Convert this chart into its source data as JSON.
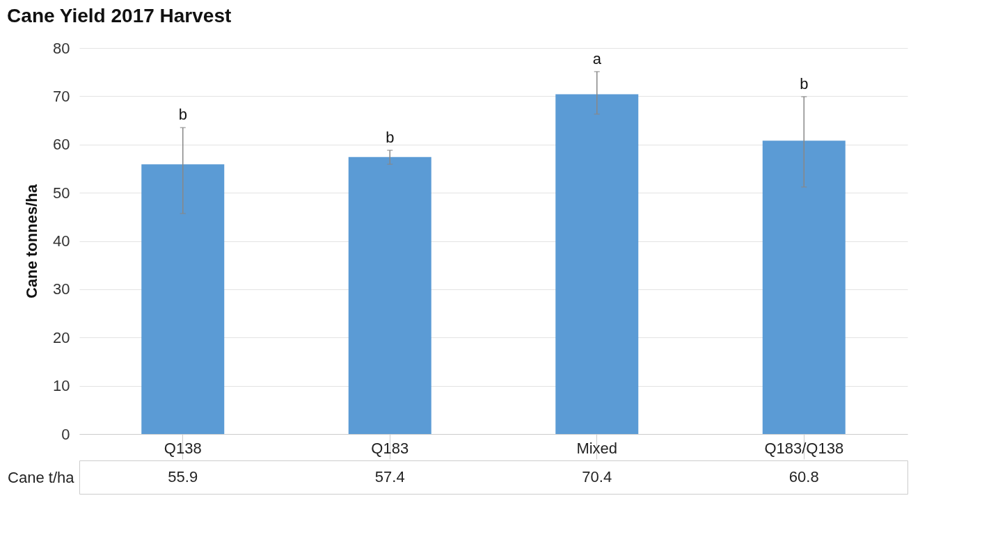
{
  "chart_data": {
    "type": "bar",
    "title": "Cane Yield 2017 Harvest",
    "ylabel": "Cane tonnes/ha",
    "categories": [
      "Q138",
      "Q183",
      "Mixed",
      "Q183/Q138"
    ],
    "series": [
      {
        "name": "Cane t/ha",
        "color": "#5b9bd5",
        "values": [
          55.9,
          57.4,
          70.4,
          60.8
        ],
        "errors": [
          [
            45.7,
            63.5
          ],
          [
            55.9,
            58.8
          ],
          [
            66.3,
            75.1
          ],
          [
            51.2,
            69.9
          ]
        ]
      }
    ],
    "ylim": [
      0,
      80
    ],
    "yticks": [
      0,
      10,
      20,
      30,
      40,
      50,
      60,
      70,
      80
    ],
    "grid": "y",
    "legend": false,
    "data_labels": true,
    "annotations": [
      {
        "text": "b",
        "x": "Q138",
        "y": 63.5
      },
      {
        "text": "b",
        "x": "Q183",
        "y": 58.8
      },
      {
        "text": "a",
        "x": "Mixed",
        "y": 75.1
      },
      {
        "text": "b",
        "x": "Q183/Q138",
        "y": 69.9
      }
    ]
  }
}
